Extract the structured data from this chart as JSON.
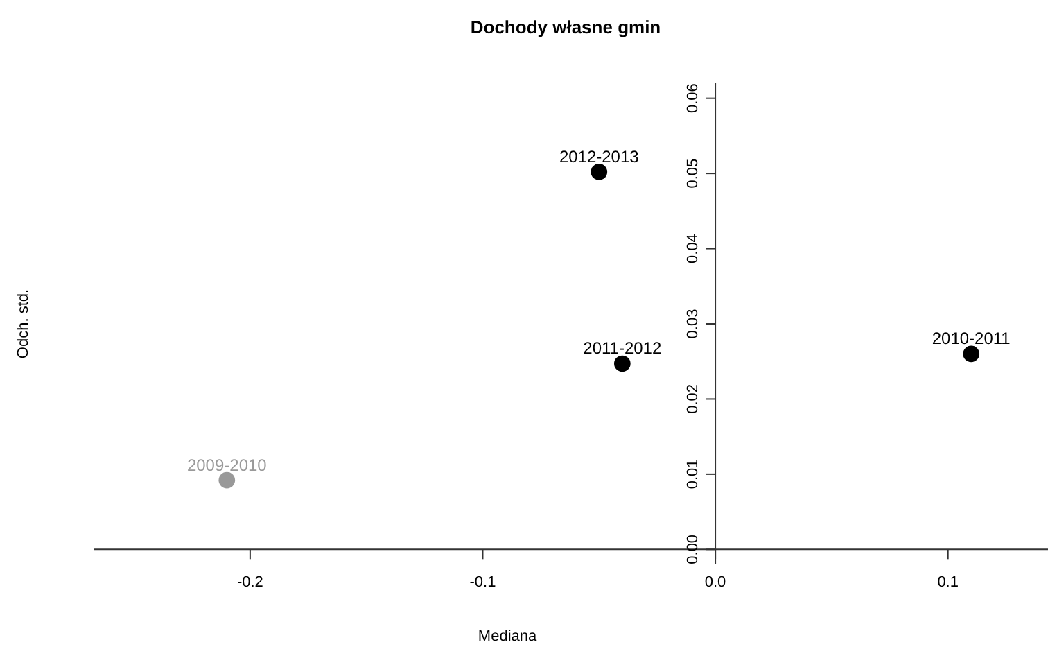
{
  "chart_data": {
    "type": "scatter",
    "title": "Dochody własne gmin",
    "xlabel": "Mediana",
    "ylabel": "Odch. std.",
    "x": [
      -0.21,
      0.11,
      -0.04,
      -0.05
    ],
    "values": [
      0.0092,
      0.026,
      0.0247,
      0.0502
    ],
    "colors": [
      "#999999",
      "#000000",
      "#000000",
      "#000000"
    ],
    "marker": "circle",
    "annotations": [
      {
        "text": "2009-2010",
        "x": -0.21,
        "y": 0.0092
      },
      {
        "text": "2010-2011",
        "x": 0.11,
        "y": 0.026
      },
      {
        "text": "2011-2012",
        "x": -0.04,
        "y": 0.0247
      },
      {
        "text": "2012-2013",
        "x": -0.05,
        "y": 0.0502
      }
    ],
    "xlim": [
      -0.267,
      0.143
    ],
    "ylim": [
      -0.002,
      0.062
    ],
    "xticks": [
      {
        "value": -0.2,
        "label": "-0.2"
      },
      {
        "value": -0.1,
        "label": "-0.1"
      },
      {
        "value": 0,
        "label": "0.0"
      },
      {
        "value": 0.1,
        "label": "0.1"
      }
    ],
    "yticks": [
      {
        "value": 0,
        "label": "0.00"
      },
      {
        "value": 0.01,
        "label": "0.01"
      },
      {
        "value": 0.02,
        "label": "0.02"
      },
      {
        "value": 0.03,
        "label": "0.03"
      },
      {
        "value": 0.04,
        "label": "0.04"
      },
      {
        "value": 0.05,
        "label": "0.05"
      },
      {
        "value": 0.06,
        "label": "0.06"
      }
    ],
    "grid": false
  }
}
